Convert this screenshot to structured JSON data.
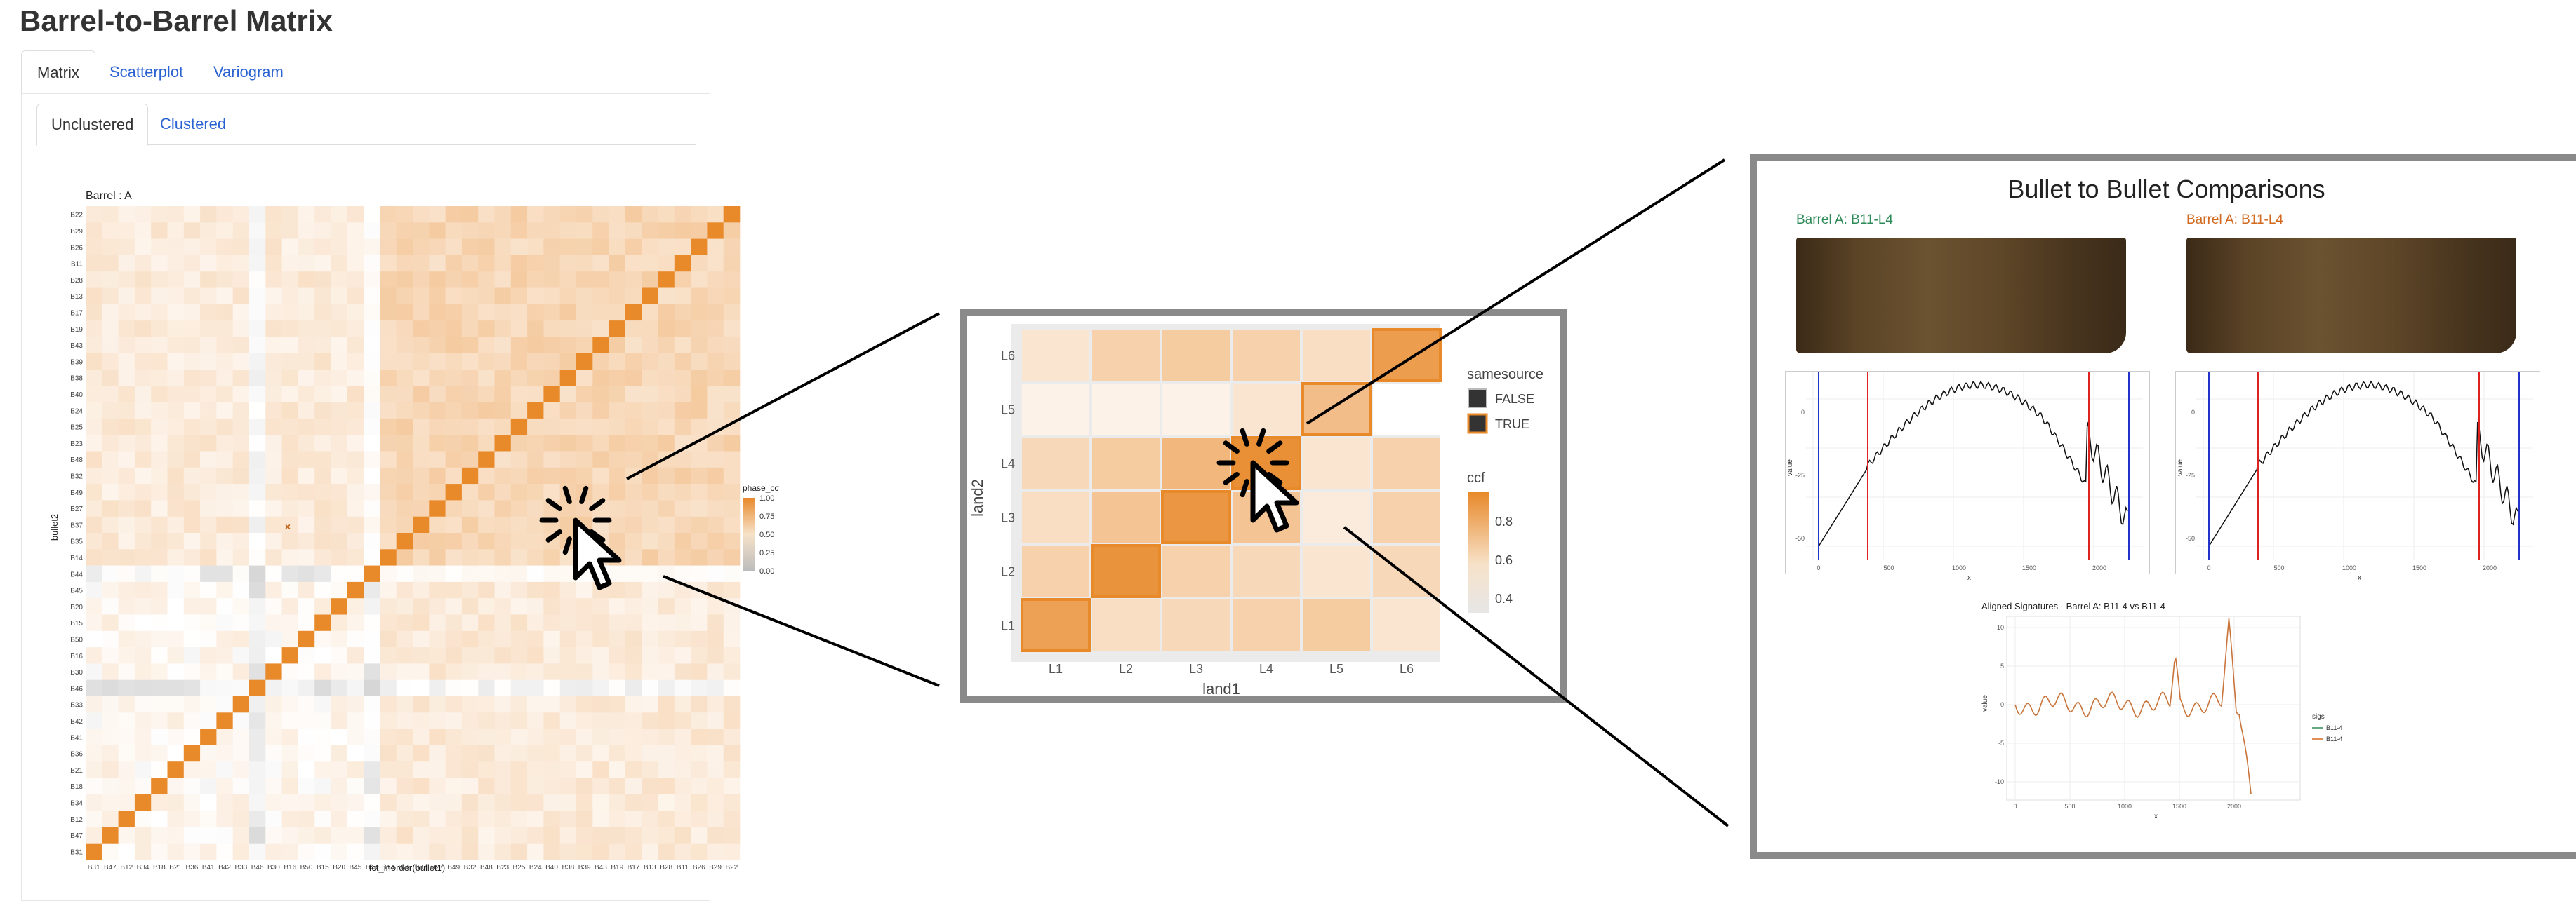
{
  "title": "Barrel-to-Barrel Matrix",
  "tabs": [
    "Matrix",
    "Scatterplot",
    "Variogram"
  ],
  "subtabs": [
    "Unclustered",
    "Clustered"
  ],
  "matrix": {
    "title": "Barrel : A",
    "xlabel": "fct_inorder(bullet1)",
    "ylabel": "bullet2",
    "x_labels": [
      "B31",
      "B47",
      "B12",
      "B34",
      "B18",
      "B21",
      "B36",
      "B41",
      "B42",
      "B33",
      "B46",
      "B30",
      "B16",
      "B50",
      "B15",
      "B20",
      "B45",
      "B44",
      "B14",
      "B35",
      "B37",
      "B27",
      "B49",
      "B32",
      "B48",
      "B23",
      "B25",
      "B24",
      "B40",
      "B38",
      "B39",
      "B43",
      "B19",
      "B17",
      "B13",
      "B28",
      "B11",
      "B26",
      "B29",
      "B22"
    ],
    "y_labels": [
      "B22",
      "B29",
      "B26",
      "B11",
      "B28",
      "B13",
      "B17",
      "B19",
      "B43",
      "B39",
      "B38",
      "B40",
      "B24",
      "B25",
      "B23",
      "B48",
      "B32",
      "B49",
      "B27",
      "B37",
      "B35",
      "B14",
      "B44",
      "B45",
      "B20",
      "B15",
      "B50",
      "B16",
      "B30",
      "B46",
      "B33",
      "B42",
      "B41",
      "B36",
      "B21",
      "B18",
      "B34",
      "B12",
      "B47",
      "B31"
    ],
    "legend_title": "phase_ccf",
    "legend_ticks": [
      "1.00",
      "0.75",
      "0.50",
      "0.25",
      "0.00"
    ]
  },
  "zoom": {
    "xlabel": "land1",
    "ylabel": "land2",
    "x_labels": [
      "L1",
      "L2",
      "L3",
      "L4",
      "L5",
      "L6"
    ],
    "y_labels": [
      "L6",
      "L5",
      "L4",
      "L3",
      "L2",
      "L1"
    ],
    "legend_samesource_title": "samesource",
    "legend_samesource": [
      "FALSE",
      "TRUE"
    ],
    "legend_ccf_title": "ccf",
    "legend_ccf_ticks": [
      "0.8",
      "0.6",
      "0.4"
    ],
    "values": [
      [
        0.3,
        0.45,
        0.5,
        0.45,
        0.35,
        0.85
      ],
      [
        0.2,
        0.2,
        0.2,
        0.3,
        0.6,
        0.1
      ],
      [
        0.4,
        0.5,
        0.65,
        0.95,
        0.3,
        0.45
      ],
      [
        0.35,
        0.55,
        0.9,
        0.55,
        0.25,
        0.45
      ],
      [
        0.45,
        0.92,
        0.45,
        0.4,
        0.3,
        0.4
      ],
      [
        0.82,
        0.35,
        0.4,
        0.45,
        0.5,
        0.3
      ]
    ],
    "same_source": [
      [
        0,
        5
      ],
      [
        1,
        4
      ],
      [
        2,
        3
      ],
      [
        3,
        2
      ],
      [
        4,
        1
      ],
      [
        5,
        0
      ]
    ]
  },
  "comparison": {
    "title": "Bullet to Bullet Comparisons",
    "left_label": "Barrel A: B11-L4",
    "right_label": "Barrel A: B11-L4",
    "left_color": "#2e8b57",
    "right_color": "#d2691e",
    "profile_ylabel": "value",
    "profile_xlabel": "x",
    "profile_xticks": [
      "0",
      "500",
      "1000",
      "1500",
      "2000"
    ],
    "profile_yticks": [
      "0",
      "-25",
      "-50"
    ],
    "aligned_title": "Aligned Signatures - Barrel A: B11-4 vs B11-4",
    "aligned_ylabel": "value",
    "aligned_xlabel": "x",
    "aligned_xticks": [
      "0",
      "500",
      "1000",
      "1500",
      "2000"
    ],
    "aligned_yticks": [
      "10",
      "5",
      "0",
      "-5",
      "-10"
    ],
    "aligned_legend_title": "sigs",
    "aligned_legend": [
      "B11-4",
      "B11-4"
    ]
  }
}
